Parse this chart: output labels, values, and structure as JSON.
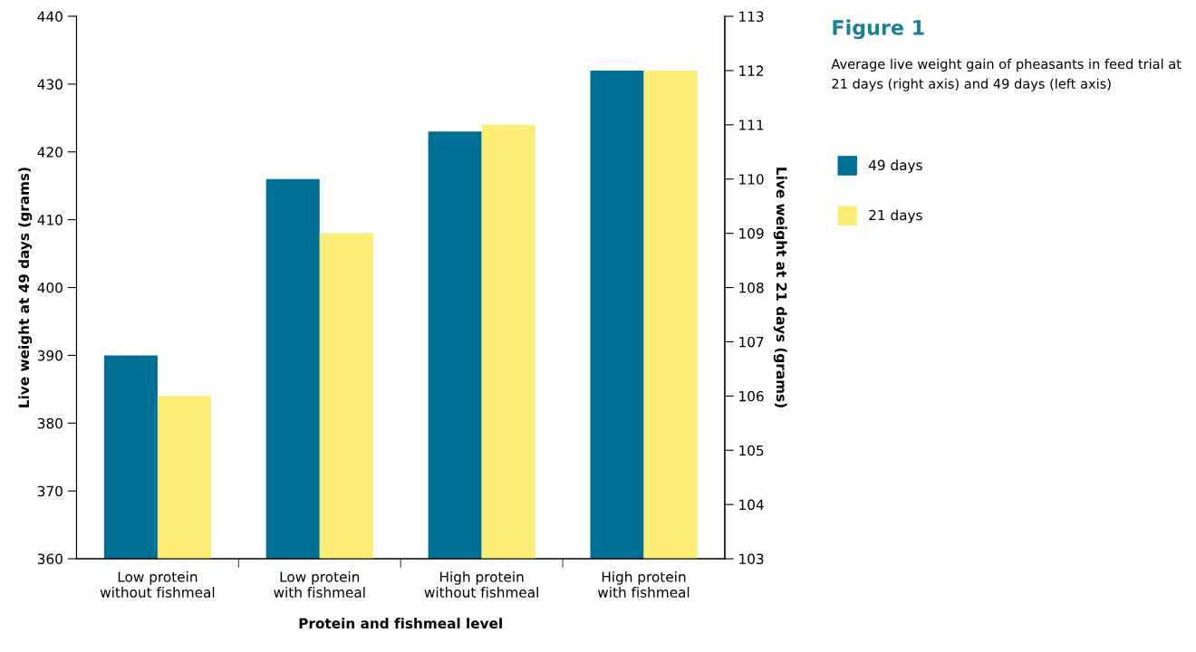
{
  "chart_data": {
    "type": "bar",
    "title": "Figure 1",
    "subtitle": "Average live weight gain of pheasants in feed trial at 21 days (right axis) and 49 days (left axis)",
    "xlabel": "Protein and fishmeal level",
    "ylabel": "Live weight at 49 days (grams)",
    "y2label": "Live weight at 21 days (grams)",
    "categories": [
      "Low protein\nwithout fishmeal",
      "Low protein\nwith fishmeal",
      "High protein\nwithout fishmeal",
      "High protein\nwith fishmeal"
    ],
    "series": [
      {
        "name": "49 days",
        "color": "#006f94",
        "values": [
          390,
          416,
          423,
          432
        ]
      },
      {
        "name": "21 days",
        "color": "#fcee74",
        "values": [
          106,
          109,
          111,
          112
        ],
        "axis": "y2"
      }
    ],
    "ylim": [
      360,
      440
    ],
    "yticks": [
      360,
      370,
      380,
      390,
      400,
      410,
      420,
      430,
      440
    ],
    "y2lim": [
      103,
      113
    ],
    "y2ticks": [
      103,
      104,
      105,
      106,
      107,
      108,
      109,
      110,
      111,
      112,
      113
    ],
    "grid": false,
    "legend": "right"
  }
}
